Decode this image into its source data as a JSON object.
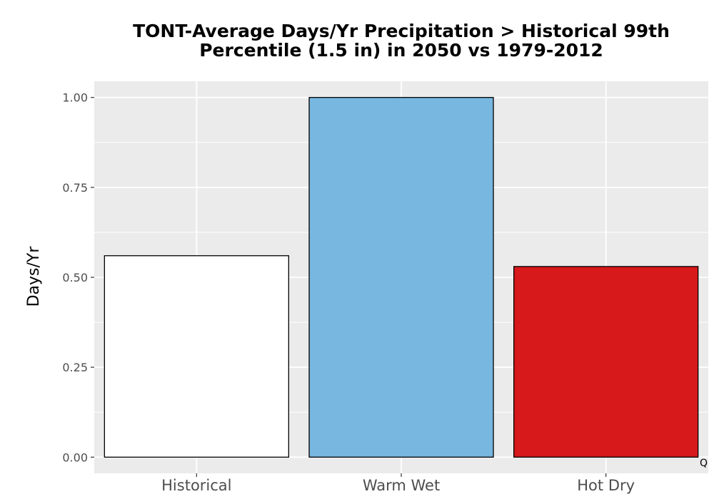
{
  "chart_data": {
    "type": "bar",
    "title": "TONT-Average Days/Yr Precipitation > Historical 99th Percentile (1.5 in) in 2050 vs 1979-2012",
    "title_lines": [
      "TONT-Average Days/Yr Precipitation > Historical 99th",
      "Percentile (1.5 in) in 2050 vs 1979-2012"
    ],
    "xlabel": "",
    "ylabel": "Days/Yr",
    "categories": [
      "Historical",
      "Warm Wet",
      "Hot Dry"
    ],
    "values": [
      0.56,
      1.0,
      0.53
    ],
    "colors": [
      "#ffffff",
      "#78b7e0",
      "#d7191c"
    ],
    "ylim": [
      -0.045,
      1.045
    ],
    "yticks": [
      0.0,
      0.25,
      0.5,
      0.75,
      1.0
    ],
    "ytick_labels": [
      "0.00",
      "0.25",
      "0.50",
      "0.75",
      "1.00"
    ],
    "grid": true,
    "panel_background": "#ebebeb",
    "corner_note": "Q"
  }
}
